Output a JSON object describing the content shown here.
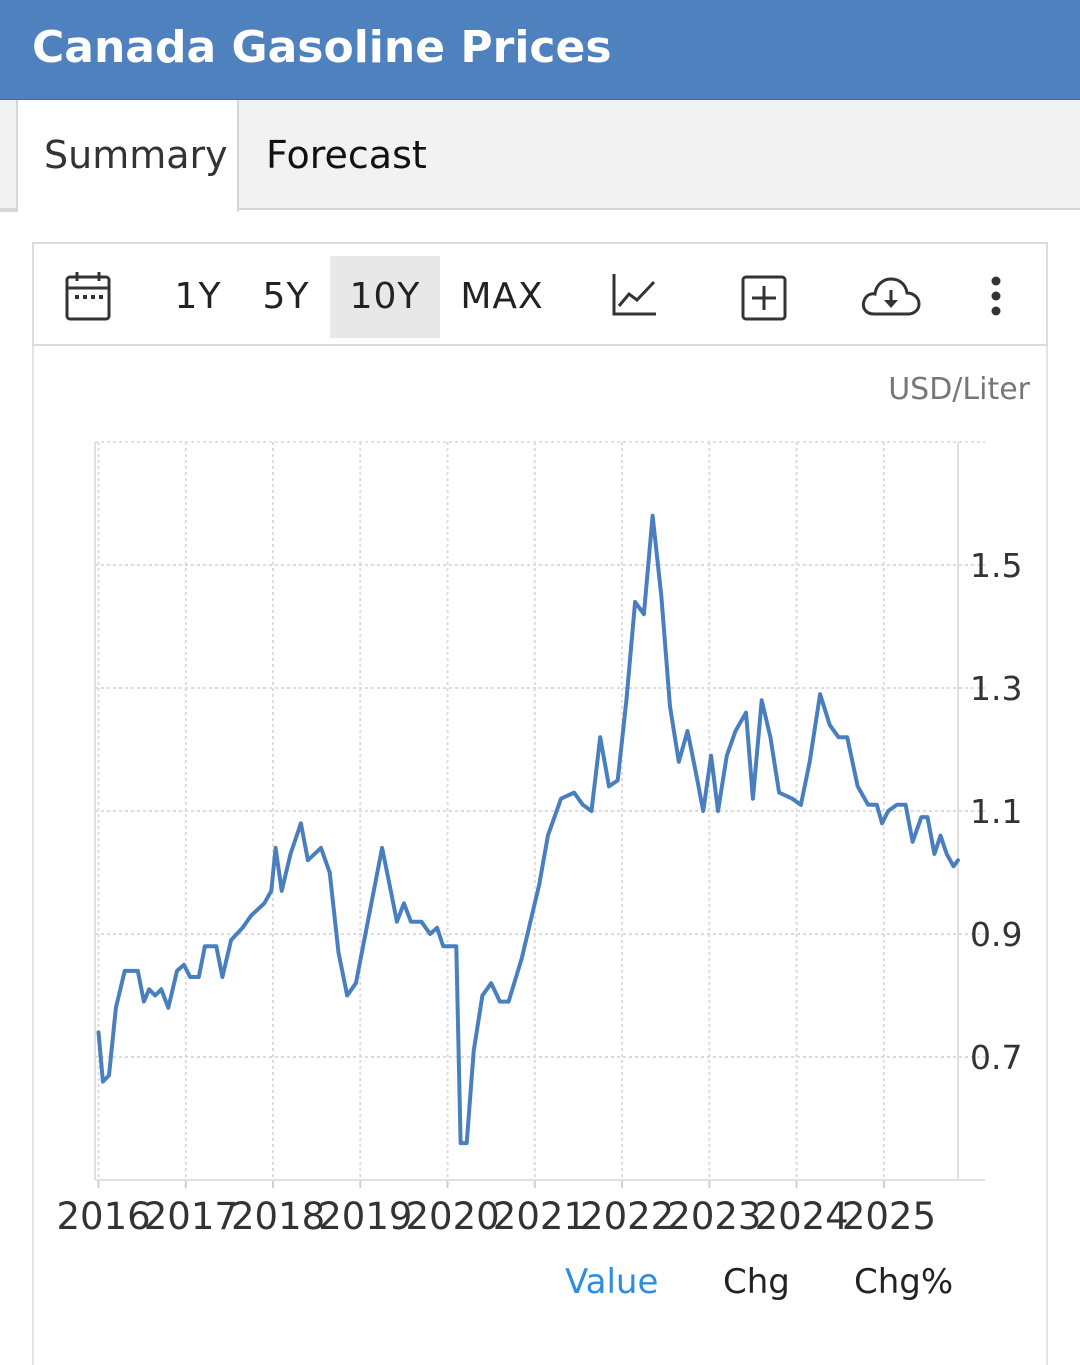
{
  "header": {
    "title": "Canada Gasoline Prices"
  },
  "tabs": [
    {
      "label": "Summary",
      "active": true
    },
    {
      "label": "Forecast",
      "active": false
    }
  ],
  "toolbar": {
    "ranges": [
      "1Y",
      "5Y",
      "10Y",
      "MAX"
    ],
    "selected_range": "10Y",
    "icons": [
      "calendar-icon",
      "line-chart-icon",
      "add-box-icon",
      "cloud-download-icon",
      "more-vertical-icon"
    ]
  },
  "legend": {
    "items": [
      "Value",
      "Chg",
      "Chg%"
    ],
    "active": "Value"
  },
  "colors": {
    "header": "#4e81bd",
    "line": "#4a7fbf",
    "active_legend": "#2e8de2"
  },
  "chart_data": {
    "type": "line",
    "unit_label": "USD/Liter",
    "x_ticks": [
      "2016",
      "2017",
      "2018",
      "2019",
      "2020",
      "2021",
      "2022",
      "2023",
      "2024",
      "2025"
    ],
    "y_ticks": [
      "0.7",
      "0.9",
      "1.1",
      "1.3",
      "1.5"
    ],
    "xlim": [
      2015.96,
      2025.85
    ],
    "ylim": [
      0.5,
      1.7
    ],
    "grid": true,
    "y_axis_position": "right",
    "series": [
      {
        "values": [
          [
            2016.0,
            0.74
          ],
          [
            2016.05,
            0.66
          ],
          [
            2016.12,
            0.67
          ],
          [
            2016.2,
            0.78
          ],
          [
            2016.3,
            0.84
          ],
          [
            2016.45,
            0.84
          ],
          [
            2016.52,
            0.79
          ],
          [
            2016.58,
            0.81
          ],
          [
            2016.65,
            0.8
          ],
          [
            2016.72,
            0.81
          ],
          [
            2016.8,
            0.78
          ],
          [
            2016.9,
            0.84
          ],
          [
            2016.98,
            0.85
          ],
          [
            2017.05,
            0.83
          ],
          [
            2017.15,
            0.83
          ],
          [
            2017.22,
            0.88
          ],
          [
            2017.35,
            0.88
          ],
          [
            2017.42,
            0.83
          ],
          [
            2017.52,
            0.89
          ],
          [
            2017.65,
            0.91
          ],
          [
            2017.75,
            0.93
          ],
          [
            2017.9,
            0.95
          ],
          [
            2017.98,
            0.97
          ],
          [
            2018.03,
            1.04
          ],
          [
            2018.1,
            0.97
          ],
          [
            2018.2,
            1.03
          ],
          [
            2018.32,
            1.08
          ],
          [
            2018.4,
            1.02
          ],
          [
            2018.55,
            1.04
          ],
          [
            2018.65,
            1.0
          ],
          [
            2018.75,
            0.87
          ],
          [
            2018.85,
            0.8
          ],
          [
            2018.95,
            0.82
          ],
          [
            2019.1,
            0.93
          ],
          [
            2019.25,
            1.04
          ],
          [
            2019.35,
            0.97
          ],
          [
            2019.42,
            0.92
          ],
          [
            2019.5,
            0.95
          ],
          [
            2019.58,
            0.92
          ],
          [
            2019.7,
            0.92
          ],
          [
            2019.8,
            0.9
          ],
          [
            2019.88,
            0.91
          ],
          [
            2019.95,
            0.88
          ],
          [
            2020.1,
            0.88
          ],
          [
            2020.15,
            0.56
          ],
          [
            2020.22,
            0.56
          ],
          [
            2020.3,
            0.71
          ],
          [
            2020.4,
            0.8
          ],
          [
            2020.5,
            0.82
          ],
          [
            2020.6,
            0.79
          ],
          [
            2020.7,
            0.79
          ],
          [
            2020.85,
            0.86
          ],
          [
            2020.95,
            0.92
          ],
          [
            2021.05,
            0.98
          ],
          [
            2021.15,
            1.06
          ],
          [
            2021.3,
            1.12
          ],
          [
            2021.45,
            1.13
          ],
          [
            2021.55,
            1.11
          ],
          [
            2021.65,
            1.1
          ],
          [
            2021.75,
            1.22
          ],
          [
            2021.85,
            1.14
          ],
          [
            2021.95,
            1.15
          ],
          [
            2022.05,
            1.28
          ],
          [
            2022.15,
            1.44
          ],
          [
            2022.25,
            1.42
          ],
          [
            2022.35,
            1.58
          ],
          [
            2022.45,
            1.45
          ],
          [
            2022.55,
            1.27
          ],
          [
            2022.65,
            1.18
          ],
          [
            2022.75,
            1.23
          ],
          [
            2022.85,
            1.16
          ],
          [
            2022.93,
            1.1
          ],
          [
            2023.02,
            1.19
          ],
          [
            2023.1,
            1.1
          ],
          [
            2023.2,
            1.19
          ],
          [
            2023.3,
            1.23
          ],
          [
            2023.42,
            1.26
          ],
          [
            2023.5,
            1.12
          ],
          [
            2023.6,
            1.28
          ],
          [
            2023.7,
            1.22
          ],
          [
            2023.8,
            1.13
          ],
          [
            2023.95,
            1.12
          ],
          [
            2024.05,
            1.11
          ],
          [
            2024.15,
            1.18
          ],
          [
            2024.27,
            1.29
          ],
          [
            2024.38,
            1.24
          ],
          [
            2024.48,
            1.22
          ],
          [
            2024.58,
            1.22
          ],
          [
            2024.7,
            1.14
          ],
          [
            2024.82,
            1.11
          ],
          [
            2024.92,
            1.11
          ],
          [
            2024.98,
            1.08
          ],
          [
            2025.05,
            1.1
          ],
          [
            2025.15,
            1.11
          ],
          [
            2025.25,
            1.11
          ],
          [
            2025.33,
            1.05
          ],
          [
            2025.43,
            1.09
          ],
          [
            2025.5,
            1.09
          ],
          [
            2025.58,
            1.03
          ],
          [
            2025.65,
            1.06
          ],
          [
            2025.72,
            1.03
          ],
          [
            2025.8,
            1.01
          ],
          [
            2025.85,
            1.02
          ]
        ]
      }
    ]
  }
}
